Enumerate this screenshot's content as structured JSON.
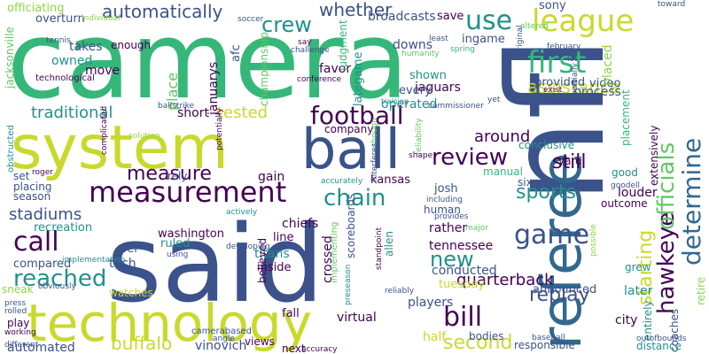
{
  "palette": {
    "dark-purple": "#440154",
    "indigo": "#3b528b",
    "steel-blue": "#31688e",
    "teal": "#21918c",
    "green": "#35b779",
    "light-green": "#5ec962",
    "yellow": "#c9d92c",
    "lime": "#90d743"
  },
  "words": [
    {
      "text": "camera",
      "color": "green"
    },
    {
      "text": "said",
      "color": "indigo"
    },
    {
      "text": "nfl",
      "color": "indigo"
    },
    {
      "text": "system",
      "color": "yellow"
    },
    {
      "text": "referee",
      "color": "steel-blue"
    },
    {
      "text": "technology",
      "color": "yellow"
    },
    {
      "text": "ball",
      "color": "indigo"
    },
    {
      "text": "measurement",
      "color": "dark-purple"
    },
    {
      "text": "football",
      "color": "dark-purple"
    },
    {
      "text": "league",
      "color": "yellow"
    },
    {
      "text": "first",
      "color": "green"
    },
    {
      "text": "hawkeye",
      "color": "dark-purple"
    },
    {
      "text": "officials",
      "color": "light-green"
    },
    {
      "text": "determine",
      "color": "steel-blue"
    },
    {
      "text": "review",
      "color": "dark-purple"
    },
    {
      "text": "chain",
      "color": "teal"
    },
    {
      "text": "game",
      "color": "indigo"
    },
    {
      "text": "measure",
      "color": "dark-purple"
    },
    {
      "text": "call",
      "color": "dark-purple"
    },
    {
      "text": "reached",
      "color": "teal"
    },
    {
      "text": "bill",
      "color": "dark-purple"
    },
    {
      "text": "second",
      "color": "yellow"
    },
    {
      "text": "use",
      "color": "teal"
    },
    {
      "text": "crew",
      "color": "teal"
    },
    {
      "text": "whether",
      "color": "indigo"
    },
    {
      "text": "assistance",
      "color": "yellow"
    },
    {
      "text": "automatically",
      "color": "indigo"
    },
    {
      "text": "traditional",
      "color": "teal"
    },
    {
      "text": "tested",
      "color": "yellow"
    },
    {
      "text": "replay",
      "color": "indigo"
    },
    {
      "text": "quarterback",
      "color": "dark-purple"
    },
    {
      "text": "starting",
      "color": "yellow"
    },
    {
      "text": "still",
      "color": "dark-purple"
    },
    {
      "text": "sports",
      "color": "teal"
    },
    {
      "text": "new",
      "color": "teal"
    },
    {
      "text": "around",
      "color": "dark-purple"
    },
    {
      "text": "stadiums",
      "color": "indigo"
    },
    {
      "text": "buffalo",
      "color": "yellow"
    },
    {
      "text": "place",
      "color": "light-green"
    },
    {
      "text": "januarys",
      "color": "dark-purple"
    },
    {
      "text": "jaguars",
      "color": "dark-purple"
    },
    {
      "text": "downs",
      "color": "indigo"
    },
    {
      "text": "league2",
      "color": "yellow"
    },
    {
      "text": "officiating",
      "color": "lime"
    },
    {
      "text": "overturn",
      "color": "indigo"
    },
    {
      "text": "broadcasts",
      "color": "indigo"
    },
    {
      "text": "save",
      "color": "dark-purple"
    },
    {
      "text": "ingame",
      "color": "indigo"
    },
    {
      "text": "sony",
      "color": "indigo"
    },
    {
      "text": "takes",
      "color": "indigo"
    },
    {
      "text": "owned",
      "color": "teal"
    },
    {
      "text": "move",
      "color": "dark-purple"
    },
    {
      "text": "enough",
      "color": "dark-purple"
    },
    {
      "text": "afc",
      "color": "indigo"
    },
    {
      "text": "shown",
      "color": "teal"
    },
    {
      "text": "operated",
      "color": "teal"
    },
    {
      "text": "every",
      "color": "indigo"
    },
    {
      "text": "provided",
      "color": "indigo"
    },
    {
      "text": "video",
      "color": "indigo"
    },
    {
      "text": "process",
      "color": "indigo"
    },
    {
      "text": "close",
      "color": "indigo"
    },
    {
      "text": "placed",
      "color": "lime"
    },
    {
      "text": "favor",
      "color": "dark-purple"
    },
    {
      "text": "lategame",
      "color": "teal"
    },
    {
      "text": "championship",
      "color": "light-green"
    },
    {
      "text": "judgment",
      "color": "green"
    },
    {
      "text": "company",
      "color": "dark-purple"
    },
    {
      "text": "short",
      "color": "dark-purple"
    },
    {
      "text": "gain",
      "color": "dark-purple"
    },
    {
      "text": "rely",
      "color": "indigo"
    },
    {
      "text": "kansas",
      "color": "dark-purple"
    },
    {
      "text": "six",
      "color": "indigo"
    },
    {
      "text": "manual",
      "color": "green"
    },
    {
      "text": "yard",
      "color": "dark-purple"
    },
    {
      "text": "good",
      "color": "teal"
    },
    {
      "text": "extensively",
      "color": "dark-purple"
    },
    {
      "text": "louder",
      "color": "dark-purple"
    },
    {
      "text": "outcome",
      "color": "dark-purple"
    },
    {
      "text": "josh",
      "color": "indigo"
    },
    {
      "text": "human",
      "color": "indigo"
    },
    {
      "text": "chiefs",
      "color": "dark-purple"
    },
    {
      "text": "washington",
      "color": "dark-purple"
    },
    {
      "text": "ruled",
      "color": "teal"
    },
    {
      "text": "line",
      "color": "dark-purple"
    },
    {
      "text": "titans",
      "color": "teal"
    },
    {
      "text": "inside",
      "color": "dark-purple"
    },
    {
      "text": "tech",
      "color": "indigo"
    },
    {
      "text": "per",
      "color": "indigo"
    },
    {
      "text": "crossed",
      "color": "dark-purple"
    },
    {
      "text": "scoreboards",
      "color": "indigo"
    },
    {
      "text": "allen",
      "color": "teal"
    },
    {
      "text": "rather",
      "color": "dark-purple"
    },
    {
      "text": "tennessee",
      "color": "dark-purple"
    },
    {
      "text": "conducted",
      "color": "indigo"
    },
    {
      "text": "tuesday",
      "color": "yellow"
    },
    {
      "text": "players",
      "color": "indigo"
    },
    {
      "text": "announced",
      "color": "indigo"
    },
    {
      "text": "later",
      "color": "teal"
    },
    {
      "text": "grew",
      "color": "teal"
    },
    {
      "text": "city",
      "color": "dark-purple"
    },
    {
      "text": "entirely",
      "color": "teal"
    },
    {
      "text": "coaches",
      "color": "indigo"
    },
    {
      "text": "retire",
      "color": "lime"
    },
    {
      "text": "placement",
      "color": "green"
    },
    {
      "text": "conclusive",
      "color": "teal"
    },
    {
      "text": "jacksonville",
      "color": "light-green"
    },
    {
      "text": "set",
      "color": "indigo"
    },
    {
      "text": "placing",
      "color": "indigo"
    },
    {
      "text": "season",
      "color": "indigo"
    },
    {
      "text": "recreation",
      "color": "teal"
    },
    {
      "text": "compared",
      "color": "indigo"
    },
    {
      "text": "sneak",
      "color": "lime"
    },
    {
      "text": "play",
      "color": "dark-purple"
    },
    {
      "text": "automated",
      "color": "indigo"
    },
    {
      "text": "watches",
      "color": "yellow"
    },
    {
      "text": "vinovich",
      "color": "indigo"
    },
    {
      "text": "views",
      "color": "dark-purple"
    },
    {
      "text": "next",
      "color": "dark-purple"
    },
    {
      "text": "fall",
      "color": "dark-purple"
    },
    {
      "text": "virtual",
      "color": "dark-purple"
    },
    {
      "text": "believed",
      "color": "dark-purple"
    },
    {
      "text": "half",
      "color": "yellow"
    },
    {
      "text": "bodies",
      "color": "indigo"
    },
    {
      "text": "responsible",
      "color": "indigo"
    },
    {
      "text": "distance",
      "color": "teal"
    },
    {
      "text": "technological",
      "color": "dark-purple"
    },
    {
      "text": "obstructed",
      "color": "teal"
    },
    {
      "text": "individual",
      "color": "lime"
    },
    {
      "text": "soccer",
      "color": "indigo"
    },
    {
      "text": "toward",
      "color": "indigo"
    },
    {
      "text": "altered",
      "color": "light-green"
    },
    {
      "text": "original",
      "color": "indigo"
    },
    {
      "text": "february",
      "color": "indigo"
    },
    {
      "text": "lot",
      "color": "indigo"
    },
    {
      "text": "humanity",
      "color": "light-green"
    },
    {
      "text": "least",
      "color": "indigo"
    },
    {
      "text": "spring",
      "color": "green"
    },
    {
      "text": "say",
      "color": "dark-purple"
    },
    {
      "text": "challenge",
      "color": "indigo"
    },
    {
      "text": "conference",
      "color": "dark-purple"
    },
    {
      "text": "implementing",
      "color": "light-green"
    },
    {
      "text": "tennis",
      "color": "indigo"
    },
    {
      "text": "ballstrike",
      "color": "indigo"
    },
    {
      "text": "training",
      "color": "teal"
    },
    {
      "text": "commissioner",
      "color": "indigo"
    },
    {
      "text": "yet",
      "color": "indigo"
    },
    {
      "text": "exist",
      "color": "dark-purple"
    },
    {
      "text": "partially",
      "color": "indigo"
    },
    {
      "text": "solution",
      "color": "lime"
    },
    {
      "text": "complicated",
      "color": "dark-purple"
    },
    {
      "text": "potentially",
      "color": "dark-purple"
    },
    {
      "text": "though",
      "color": "light-green"
    },
    {
      "text": "reliability",
      "color": "light-green"
    },
    {
      "text": "interferes",
      "color": "indigo"
    },
    {
      "text": "shape",
      "color": "dark-purple"
    },
    {
      "text": "roger",
      "color": "dark-purple"
    },
    {
      "text": "accurately",
      "color": "teal"
    },
    {
      "text": "goodell",
      "color": "indigo"
    },
    {
      "text": "including",
      "color": "indigo"
    },
    {
      "text": "provides",
      "color": "indigo"
    },
    {
      "text": "actively",
      "color": "teal"
    },
    {
      "text": "developing",
      "color": "indigo"
    },
    {
      "text": "using",
      "color": "indigo"
    },
    {
      "text": "obviously",
      "color": "indigo"
    },
    {
      "text": "implementation",
      "color": "teal"
    },
    {
      "text": "press",
      "color": "indigo"
    },
    {
      "text": "rolled",
      "color": "indigo"
    },
    {
      "text": "working",
      "color": "dark-purple"
    },
    {
      "text": "different",
      "color": "indigo"
    },
    {
      "text": "preseason",
      "color": "teal"
    },
    {
      "text": "standpoint",
      "color": "dark-purple"
    },
    {
      "text": "major",
      "color": "light-green"
    },
    {
      "text": "reliably",
      "color": "indigo"
    },
    {
      "text": "angle",
      "color": "indigo"
    },
    {
      "text": "accuracy",
      "color": "dark-purple"
    },
    {
      "text": "baseball",
      "color": "indigo"
    },
    {
      "text": "outofbounds",
      "color": "indigo"
    },
    {
      "text": "possible",
      "color": "lime"
    },
    {
      "text": "camerabased",
      "color": "indigo"
    }
  ]
}
